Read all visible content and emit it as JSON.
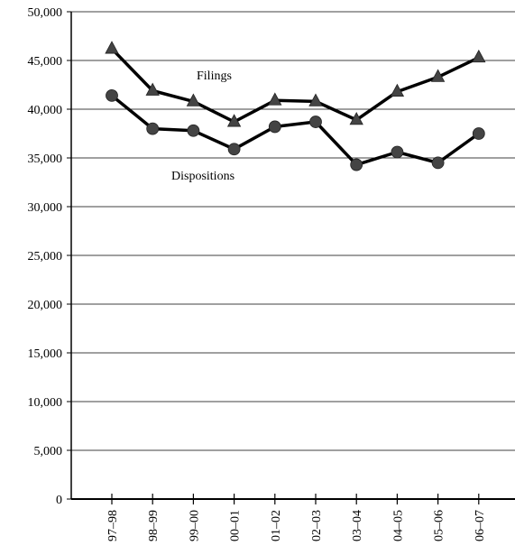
{
  "chart_data": {
    "type": "line",
    "categories": [
      "97–98",
      "98–99",
      "99–00",
      "00–01",
      "01–02",
      "02–03",
      "03–04",
      "04–05",
      "05–06",
      "06–07"
    ],
    "series": [
      {
        "name": "Filings",
        "marker": "triangle",
        "color": "#000000",
        "marker_color": "#444444",
        "values": [
          46200,
          41900,
          40800,
          38700,
          40900,
          40800,
          38900,
          41800,
          43300,
          45300
        ]
      },
      {
        "name": "Dispositions",
        "marker": "circle",
        "color": "#000000",
        "marker_color": "#444444",
        "values": [
          41400,
          38000,
          37800,
          35900,
          38200,
          38700,
          34300,
          35600,
          34500,
          37500
        ]
      }
    ],
    "y_ticks": [
      "0",
      "5,000",
      "10,000",
      "15,000",
      "20,000",
      "25,000",
      "30,000",
      "35,000",
      "40,000",
      "45,000",
      "50,000"
    ],
    "ylim": [
      0,
      50000
    ],
    "y_tick_step": 5000,
    "grid": "horizontal",
    "title": "",
    "xlabel": "",
    "ylabel": ""
  }
}
